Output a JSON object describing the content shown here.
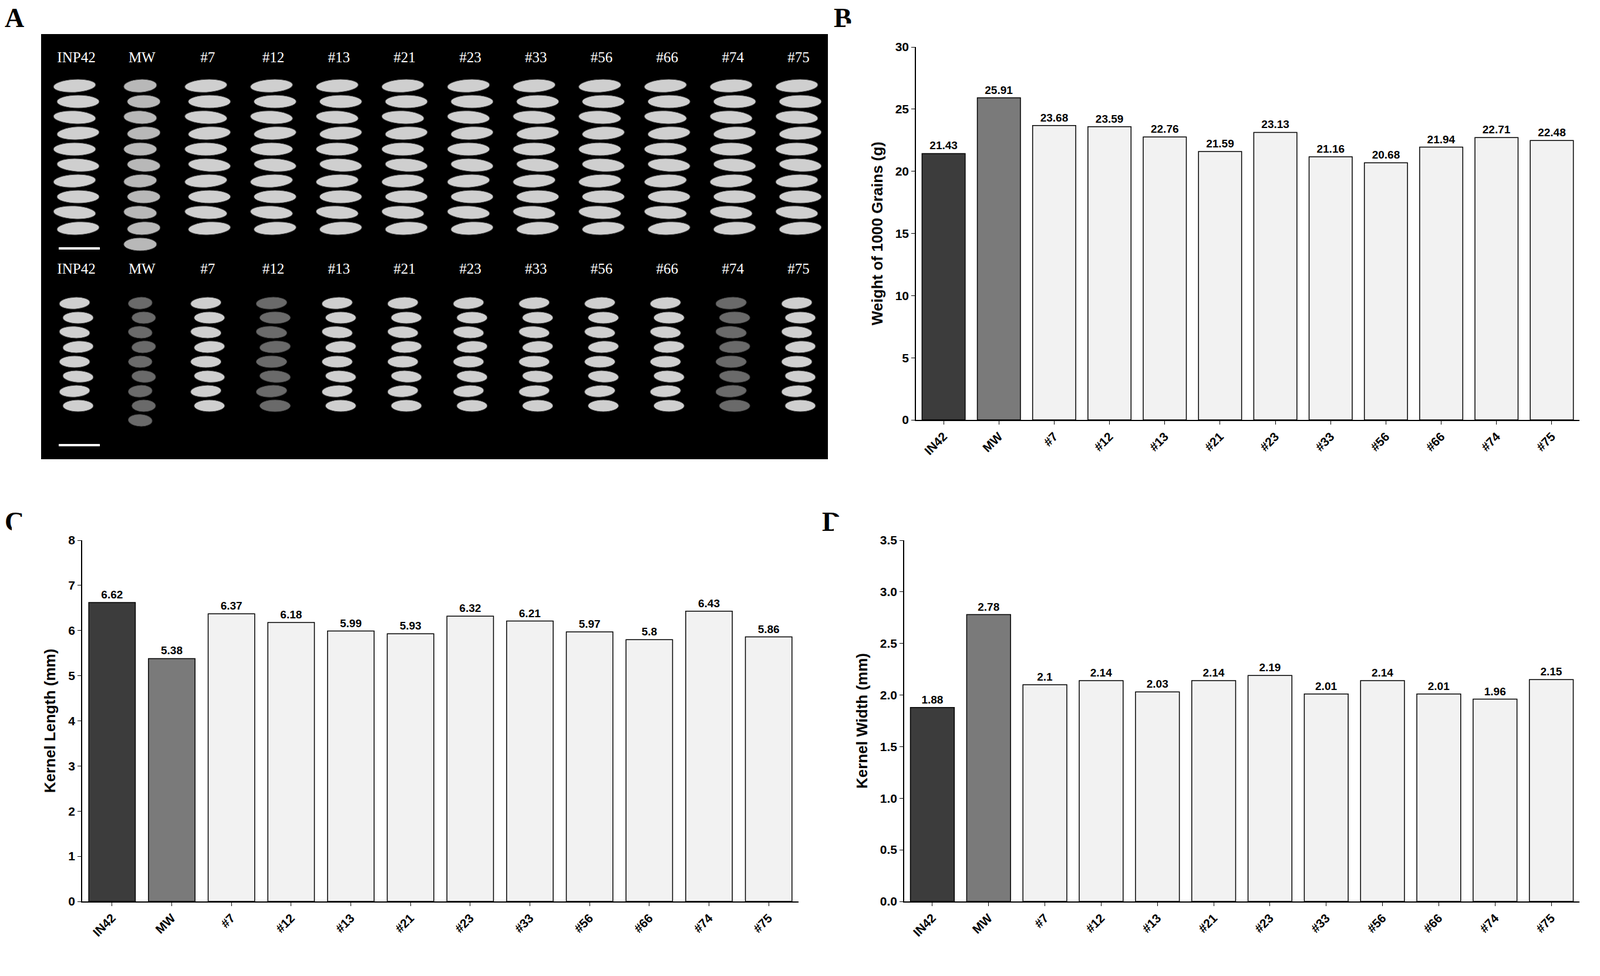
{
  "image_panel": {
    "panel": "A",
    "rows": [
      [
        "INP42",
        "MW",
        "#7",
        "#12",
        "#13",
        "#21",
        "#23",
        "#33",
        "#56",
        "#66",
        "#74",
        "#75"
      ],
      [
        "INP42",
        "MW",
        "#7",
        "#12",
        "#13",
        "#21",
        "#23",
        "#33",
        "#56",
        "#66",
        "#74",
        "#75"
      ]
    ]
  },
  "chart_data": [
    {
      "panel": "B",
      "type": "bar",
      "y_label": "Weight of 1000 Grains (g)",
      "categories": [
        "IN42",
        "MW",
        "#7",
        "#12",
        "#13",
        "#21",
        "#23",
        "#33",
        "#56",
        "#66",
        "#74",
        "#75"
      ],
      "values": [
        21.43,
        25.91,
        23.68,
        23.59,
        22.76,
        21.59,
        23.13,
        21.16,
        20.68,
        21.94,
        22.71,
        22.48
      ],
      "colors": [
        "#3c3c3c",
        "#7a7a7a",
        "#f2f2f2",
        "#f2f2f2",
        "#f2f2f2",
        "#f2f2f2",
        "#f2f2f2",
        "#f2f2f2",
        "#f2f2f2",
        "#f2f2f2",
        "#f2f2f2",
        "#f2f2f2"
      ],
      "ylim": [
        0,
        30
      ],
      "yticks": [
        0,
        5,
        10,
        15,
        20,
        25,
        30
      ],
      "grid": false,
      "data_labels": true
    },
    {
      "panel": "C",
      "type": "bar",
      "y_label": "Kernel Length (mm)",
      "categories": [
        "IN42",
        "MW",
        "#7",
        "#12",
        "#13",
        "#21",
        "#23",
        "#33",
        "#56",
        "#66",
        "#74",
        "#75"
      ],
      "values": [
        6.62,
        5.38,
        6.37,
        6.18,
        5.99,
        5.93,
        6.32,
        6.21,
        5.97,
        5.8,
        6.43,
        5.86
      ],
      "colors": [
        "#3c3c3c",
        "#7a7a7a",
        "#f2f2f2",
        "#f2f2f2",
        "#f2f2f2",
        "#f2f2f2",
        "#f2f2f2",
        "#f2f2f2",
        "#f2f2f2",
        "#f2f2f2",
        "#f2f2f2",
        "#f2f2f2"
      ],
      "ylim": [
        0,
        8
      ],
      "yticks": [
        0,
        1,
        2,
        3,
        4,
        5,
        6,
        7,
        8
      ],
      "grid": false,
      "data_labels": true
    },
    {
      "panel": "D",
      "type": "bar",
      "y_label": "Kernel Width (mm)",
      "categories": [
        "IN42",
        "MW",
        "#7",
        "#12",
        "#13",
        "#21",
        "#23",
        "#33",
        "#56",
        "#66",
        "#74",
        "#75"
      ],
      "values": [
        1.88,
        2.78,
        2.1,
        2.14,
        2.03,
        2.14,
        2.19,
        2.01,
        2.14,
        2.01,
        1.96,
        2.15
      ],
      "colors": [
        "#3c3c3c",
        "#7a7a7a",
        "#f2f2f2",
        "#f2f2f2",
        "#f2f2f2",
        "#f2f2f2",
        "#f2f2f2",
        "#f2f2f2",
        "#f2f2f2",
        "#f2f2f2",
        "#f2f2f2",
        "#f2f2f2"
      ],
      "ylim": [
        0,
        3.5
      ],
      "yticks": [
        {
          "value": 0,
          "label": "0.0"
        },
        0.5,
        {
          "value": 1,
          "label": "1.0"
        },
        1.5,
        {
          "value": 2,
          "label": "2.0"
        },
        2.5,
        {
          "value": 3,
          "label": "3.0"
        },
        3.5
      ],
      "grid": false,
      "data_labels": true
    }
  ]
}
